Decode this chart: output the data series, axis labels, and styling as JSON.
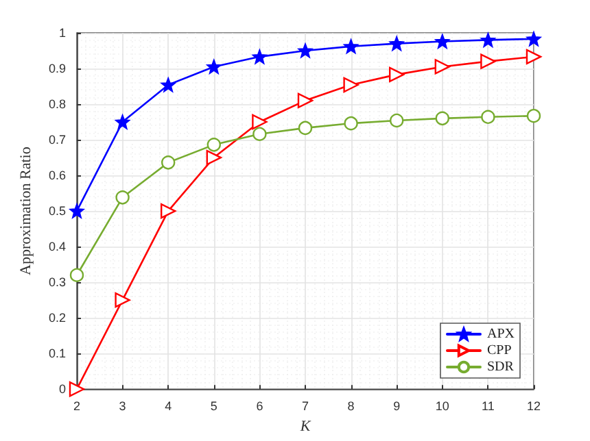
{
  "chart_data": {
    "type": "line",
    "xlabel": "K",
    "ylabel": "Approximation Ratio",
    "x": [
      2,
      3,
      4,
      5,
      6,
      7,
      8,
      9,
      10,
      11,
      12
    ],
    "series": [
      {
        "name": "APX",
        "color": "#0000ff",
        "marker": "star",
        "values": [
          0.5,
          0.75,
          0.854,
          0.905,
          0.933,
          0.95,
          0.962,
          0.97,
          0.976,
          0.98,
          0.983
        ]
      },
      {
        "name": "CPP",
        "color": "#ff0000",
        "marker": "triangle",
        "values": [
          0,
          0.25,
          0.5,
          0.65,
          0.75,
          0.81,
          0.854,
          0.883,
          0.905,
          0.92,
          0.933
        ]
      },
      {
        "name": "SDR",
        "color": "#77ac30",
        "marker": "circle",
        "values": [
          0.32,
          0.538,
          0.636,
          0.686,
          0.716,
          0.733,
          0.746,
          0.754,
          0.76,
          0.764,
          0.767
        ]
      }
    ],
    "xlim": [
      2,
      12
    ],
    "xticks": [
      2,
      3,
      4,
      5,
      6,
      7,
      8,
      9,
      10,
      11,
      12
    ],
    "ylim": [
      0,
      1
    ],
    "yticks": [
      0,
      0.1,
      0.2,
      0.3,
      0.4,
      0.5,
      0.6,
      0.7,
      0.8,
      0.9,
      1
    ],
    "grid": true,
    "legend": "bottom right",
    "line_style": "solid"
  }
}
